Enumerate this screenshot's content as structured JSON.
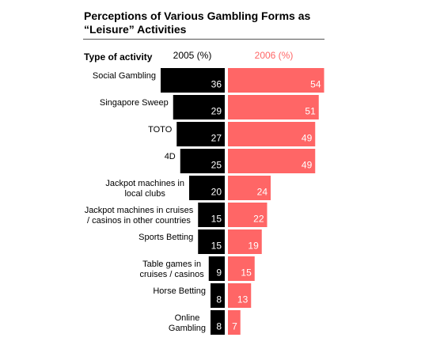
{
  "chart_data": {
    "type": "butterfly-bar",
    "title": "Perceptions of Various Gambling Forms as “Leisure”  Activities",
    "category_label": "Type of activity",
    "categories": [
      "Social Gambling",
      "Singapore Sweep",
      "TOTO",
      "4D",
      "Jackpot machines in\nlocal clubs",
      "Jackpot machines in cruises\n/ casinos in other countries",
      "Sports Betting",
      "Table games in\ncruises / casinos",
      "Horse Betting",
      "Online\nGambling"
    ],
    "series": [
      {
        "name": "2005 (%)",
        "color": "#000000",
        "values": [
          36,
          29,
          27,
          25,
          20,
          15,
          15,
          9,
          8,
          8
        ]
      },
      {
        "name": "2006 (%)",
        "color": "#ff6666",
        "values": [
          54,
          51,
          49,
          49,
          24,
          22,
          19,
          15,
          13,
          7
        ]
      }
    ]
  }
}
